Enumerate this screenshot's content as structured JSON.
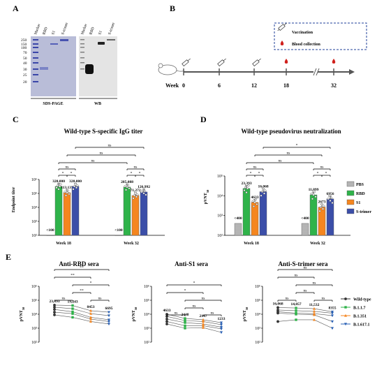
{
  "panelA": {
    "letter": "A",
    "lanes_sds": [
      "Marker",
      "RBD",
      "S1",
      "S-trimer"
    ],
    "lanes_wb": [
      "Marker",
      "RBD",
      "S1",
      "S-trimer"
    ],
    "mw": [
      "250",
      "150",
      "100",
      "70",
      "50",
      "40",
      "30",
      "25",
      "20"
    ],
    "sds_label": "SDS-PAGE",
    "wb_label": "WB"
  },
  "panelB": {
    "letter": "B",
    "legend_vax": "Vaccination",
    "legend_blood": "Blood collection",
    "week_label": "Week",
    "weeks": [
      "0",
      "6",
      "12",
      "18",
      "32"
    ]
  },
  "panelC": {
    "letter": "C",
    "ylabel": "Endpoint titer",
    "yticks": [
      "10²",
      "10³",
      "10⁴",
      "10⁵",
      "10⁶"
    ],
    "ns": "ns",
    "star": "*"
  },
  "panelD": {
    "letter": "D",
    "ylabel": "pVNT50",
    "yticks": [
      "10²",
      "10³",
      "10⁴",
      "10⁵"
    ],
    "ns": "ns",
    "star": "*"
  },
  "legendCD": [
    "PBS",
    "RBD",
    "S1",
    "S-trimer"
  ],
  "panelE": {
    "letter": "E",
    "ylabel": "pVNT50",
    "yticks": [
      "10²",
      "10³",
      "10⁴",
      "10⁵",
      "10⁶"
    ],
    "legend": [
      "Wild-type",
      "B.1.1.7",
      "B.1.351",
      "B.1.617.1"
    ],
    "ns": "ns",
    "dstar": "**",
    "star": "*"
  },
  "chart_data": [
    {
      "type": "bar",
      "title": "Wild-type S-specific IgG titer",
      "ylabel": "Endpoint titer",
      "yscale": "log",
      "ylim": [
        100,
        1000000
      ],
      "categories": [
        "Week 18",
        "Week 32"
      ],
      "series": [
        {
          "name": "PBS",
          "values": [
            100,
            100
          ],
          "labels": [
            "<100",
            "<100"
          ],
          "color": "#c8c8c8"
        },
        {
          "name": "RBD",
          "values": [
            320000,
            285088
          ],
          "labels": [
            "320,000",
            "285,088"
          ],
          "color": "#2fb34a"
        },
        {
          "name": "S1",
          "values": [
            113137,
            71272
          ],
          "labels": [
            "113,137",
            "71,272"
          ],
          "color": "#f5861f"
        },
        {
          "name": "S-trimer",
          "values": [
            320000,
            126992
          ],
          "labels": [
            "320,000",
            "126,992"
          ],
          "color": "#3b4ea8"
        }
      ]
    },
    {
      "type": "bar",
      "title": "Wild-type pseudovirus neutralization",
      "ylabel": "pVNT50",
      "yscale": "log",
      "ylim": [
        100,
        100000
      ],
      "categories": [
        "Week 18",
        "Week 32"
      ],
      "series": [
        {
          "name": "PBS",
          "values": [
            400,
            400
          ],
          "labels": [
            "<400",
            "<400"
          ],
          "color": "#c8c8c8"
        },
        {
          "name": "RBD",
          "values": [
            23393,
            11099
          ],
          "labels": [
            "23,393",
            "11,099"
          ],
          "color": "#2fb34a"
        },
        {
          "name": "S1",
          "values": [
            4633,
            2673
          ],
          "labels": [
            "4633",
            "2673"
          ],
          "color": "#f5861f"
        },
        {
          "name": "S-trimer",
          "values": [
            16068,
            6956
          ],
          "labels": [
            "16,068",
            "6956"
          ],
          "color": "#3b4ea8"
        }
      ]
    },
    {
      "type": "line",
      "title": "Anti-RBD sera",
      "ylabel": "pVNT50",
      "yscale": "log",
      "ylim": [
        100,
        1000000
      ],
      "categories": [
        "Wild-type",
        "B.1.1.7",
        "B.1.351",
        "B.1.617.1"
      ],
      "gmt": [
        23393,
        19243,
        8453,
        6695
      ],
      "labels": [
        "23,393",
        "19,243",
        "8453",
        "6695"
      ],
      "series": [
        {
          "values": [
            45000,
            42000,
            18000,
            14000
          ]
        },
        {
          "values": [
            32000,
            25000,
            11000,
            8000
          ]
        },
        {
          "values": [
            22000,
            15000,
            6000,
            4000
          ]
        },
        {
          "values": [
            14000,
            11000,
            4500,
            3000
          ]
        },
        {
          "values": [
            9000,
            6000,
            3000,
            2000
          ]
        }
      ]
    },
    {
      "type": "line",
      "title": "Anti-S1 sera",
      "ylabel": "pVNT50",
      "yscale": "log",
      "ylim": [
        100,
        1000000
      ],
      "categories": [
        "Wild-type",
        "B.1.1.7",
        "B.1.351",
        "B.1.617.1"
      ],
      "gmt": [
        4633,
        2448,
        2147,
        1233
      ],
      "labels": [
        "4633",
        "2448",
        "2147",
        "1233"
      ],
      "series": [
        {
          "values": [
            10000,
            5000,
            4000,
            2500
          ]
        },
        {
          "values": [
            7000,
            3500,
            3000,
            1800
          ]
        },
        {
          "values": [
            4500,
            2500,
            2000,
            1200
          ]
        },
        {
          "values": [
            3000,
            1500,
            1500,
            900
          ]
        },
        {
          "values": [
            2000,
            1000,
            1100,
            500
          ]
        }
      ]
    },
    {
      "type": "line",
      "title": "Anti-S-trimer sera",
      "ylabel": "pVNT50",
      "yscale": "log",
      "ylim": [
        100,
        1000000
      ],
      "categories": [
        "Wild-type",
        "B.1.1.7",
        "B.1.351",
        "B.1.617.1"
      ],
      "gmt": [
        16068,
        14057,
        11532,
        8355
      ],
      "labels": [
        "16,068",
        "14,057",
        "11,532",
        "8355"
      ],
      "series": [
        {
          "values": [
            30000,
            28000,
            25000,
            15000
          ]
        },
        {
          "values": [
            20000,
            18000,
            16000,
            12000
          ]
        },
        {
          "values": [
            15000,
            12000,
            11000,
            8000
          ]
        },
        {
          "values": [
            12000,
            10000,
            9000,
            3000
          ]
        },
        {
          "values": [
            3000,
            4000,
            4000,
            1000
          ]
        }
      ]
    }
  ]
}
